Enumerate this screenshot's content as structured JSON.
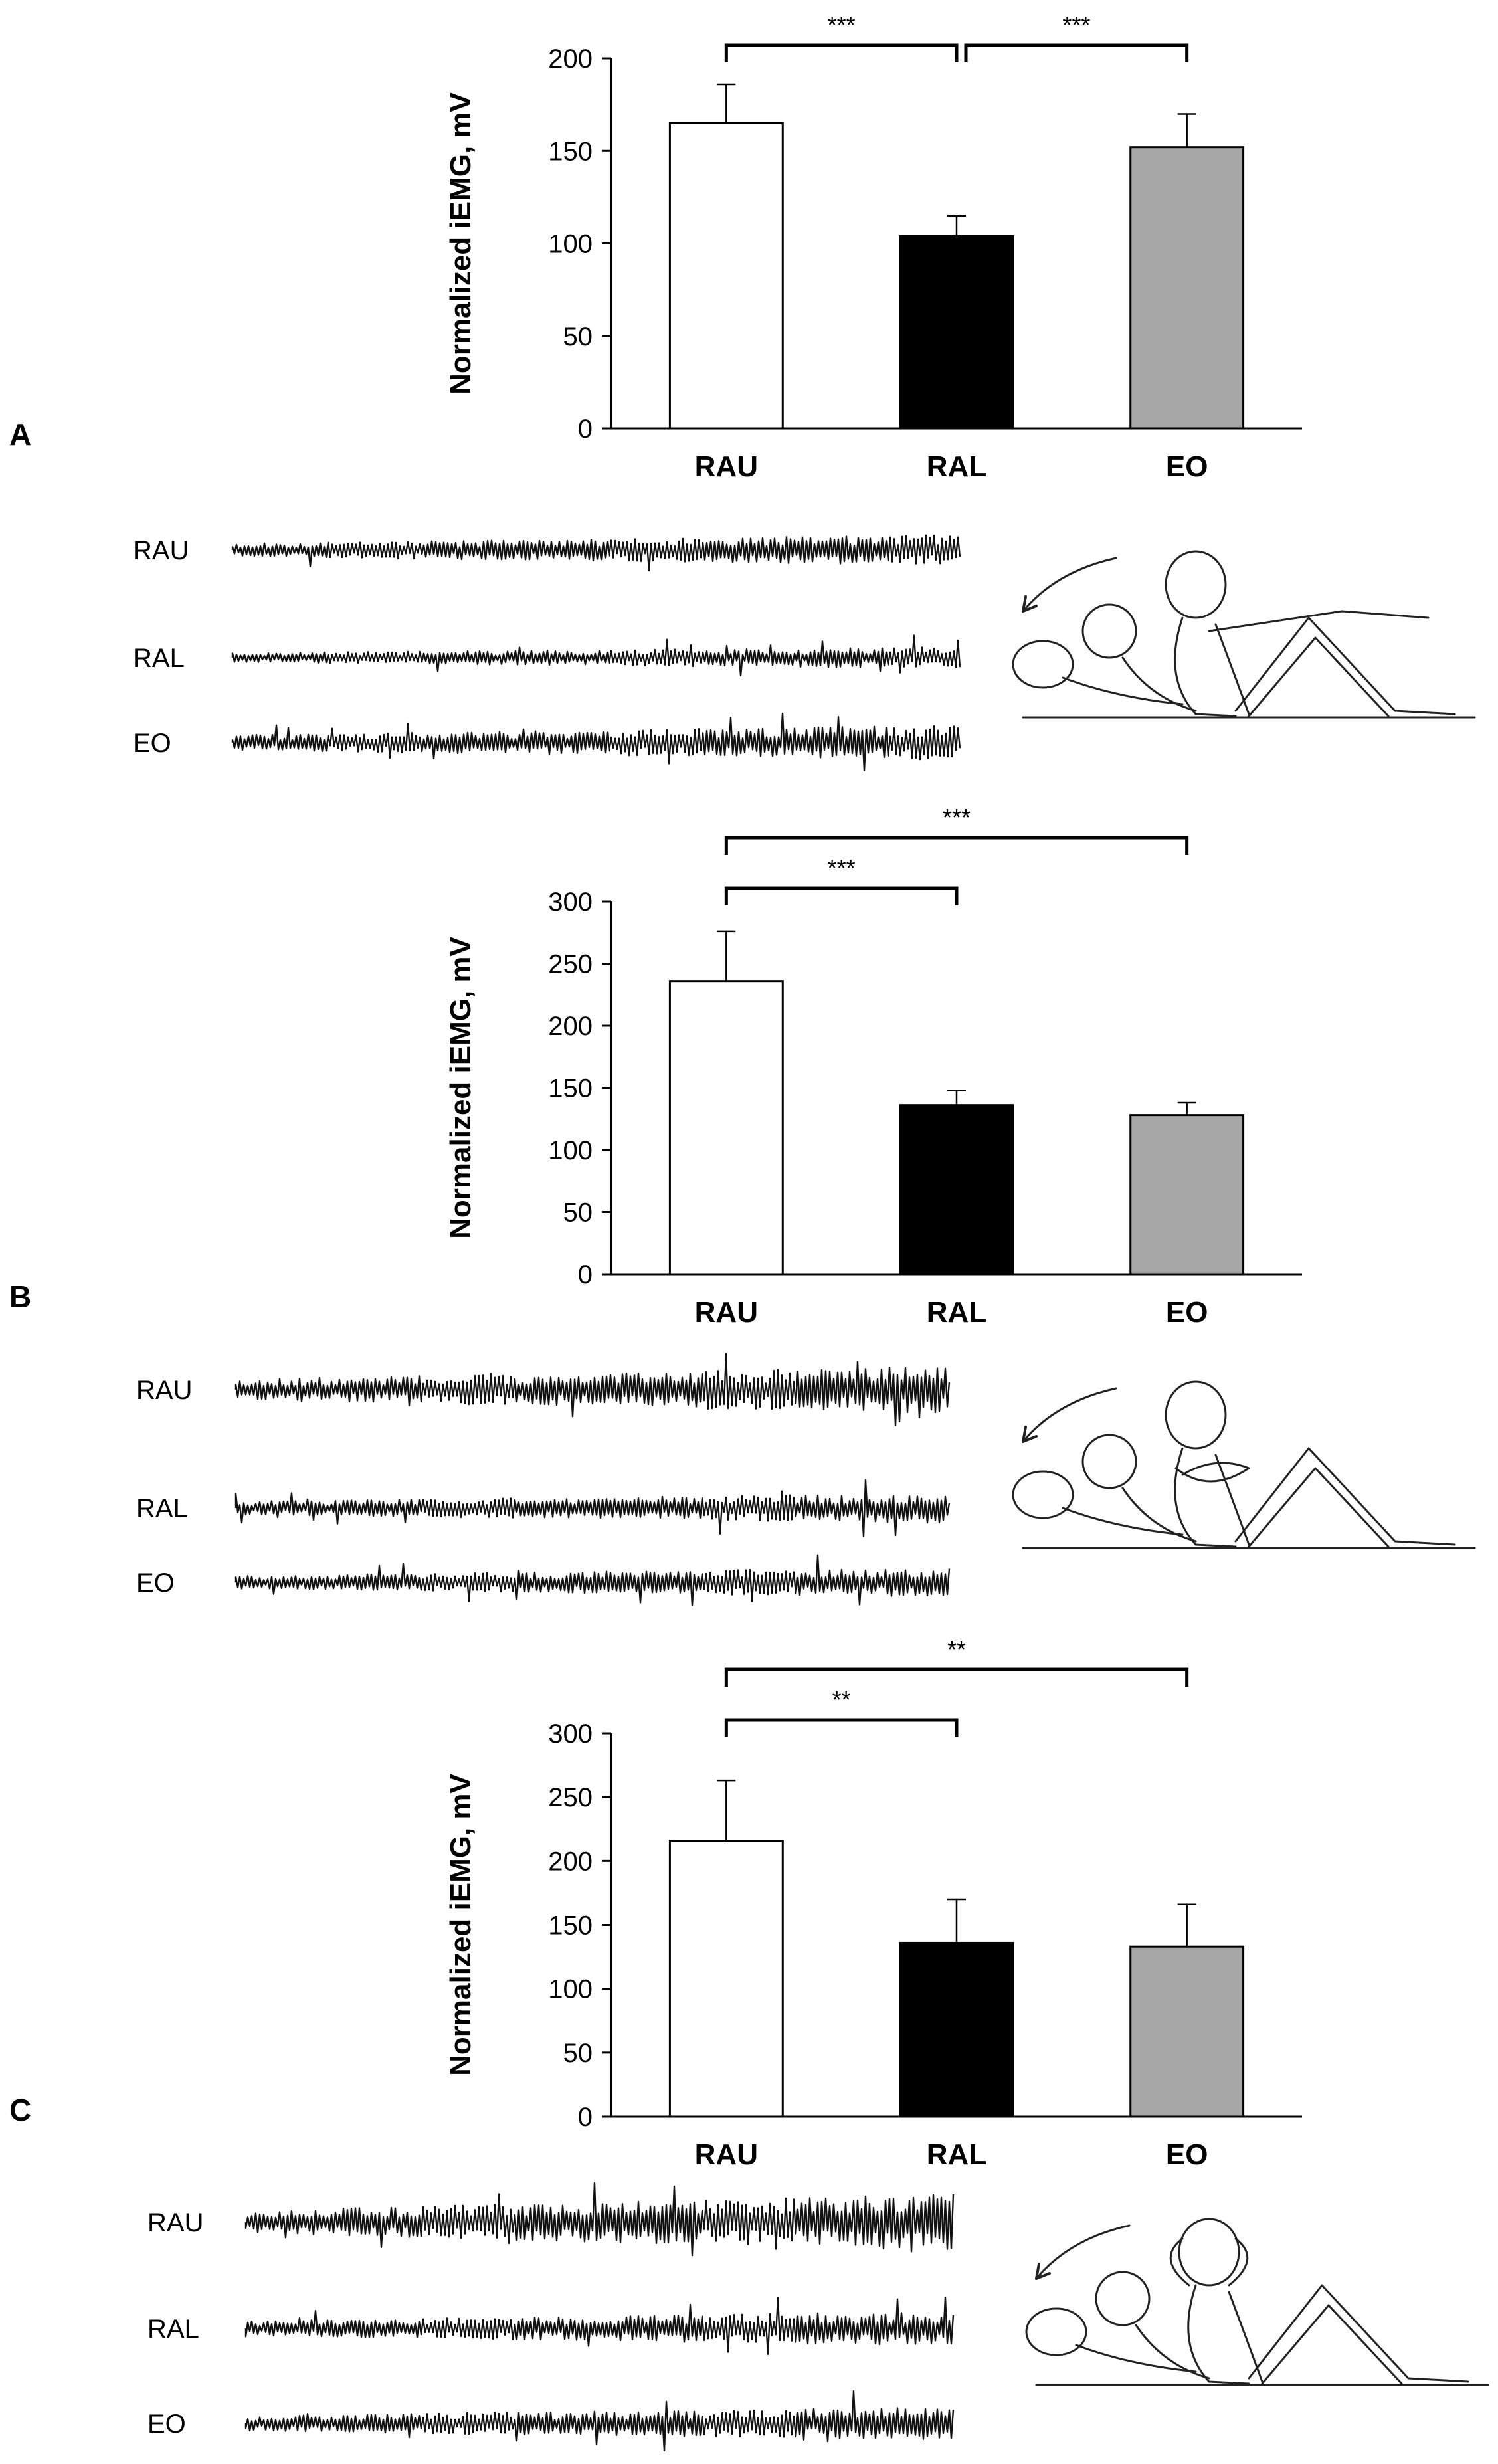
{
  "panels": [
    {
      "letter": "A",
      "chart_data": {
        "type": "bar",
        "categories": [
          "RAU",
          "RAL",
          "EO"
        ],
        "values": [
          165,
          104,
          152
        ],
        "errors": [
          21,
          11,
          18
        ],
        "bar_colors": [
          "#ffffff",
          "#000000",
          "#a6a6a6"
        ],
        "ylabel": "Normalized iEMG, mV",
        "ylim": [
          0,
          200
        ],
        "yticks": [
          "0",
          "50",
          "100",
          "150",
          "200"
        ],
        "grid": false,
        "significance": [
          {
            "from": 0,
            "to": 1,
            "label": "***",
            "level": 0
          },
          {
            "from": 1,
            "to": 2,
            "label": "***",
            "level": 0
          }
        ]
      },
      "traces": [
        "RAU",
        "RAL",
        "EO"
      ],
      "illustration": "sit-up-arms-extended-drawing"
    },
    {
      "letter": "B",
      "chart_data": {
        "type": "bar",
        "categories": [
          "RAU",
          "RAL",
          "EO"
        ],
        "values": [
          236,
          136,
          128
        ],
        "errors": [
          40,
          12,
          10
        ],
        "bar_colors": [
          "#ffffff",
          "#000000",
          "#a6a6a6"
        ],
        "ylabel": "Normalized iEMG, mV",
        "ylim": [
          0,
          300
        ],
        "yticks": [
          "0",
          "50",
          "100",
          "150",
          "200",
          "250",
          "300"
        ],
        "grid": false,
        "significance": [
          {
            "from": 0,
            "to": 1,
            "label": "***",
            "level": 0
          },
          {
            "from": 0,
            "to": 2,
            "label": "***",
            "level": 1
          }
        ]
      },
      "traces": [
        "RAU",
        "RAL",
        "EO"
      ],
      "illustration": "sit-up-arms-crossed-drawing"
    },
    {
      "letter": "C",
      "chart_data": {
        "type": "bar",
        "categories": [
          "RAU",
          "RAL",
          "EO"
        ],
        "values": [
          216,
          136,
          133
        ],
        "errors": [
          47,
          34,
          33
        ],
        "bar_colors": [
          "#ffffff",
          "#000000",
          "#a6a6a6"
        ],
        "ylabel": "Normalized iEMG, mV",
        "ylim": [
          0,
          300
        ],
        "yticks": [
          "0",
          "50",
          "100",
          "150",
          "200",
          "250",
          "300"
        ],
        "grid": false,
        "significance": [
          {
            "from": 0,
            "to": 1,
            "label": "**",
            "level": 0
          },
          {
            "from": 0,
            "to": 2,
            "label": "**",
            "level": 1
          }
        ]
      },
      "traces": [
        "RAU",
        "RAL",
        "EO"
      ],
      "illustration": "sit-up-hands-behind-head-drawing"
    }
  ]
}
